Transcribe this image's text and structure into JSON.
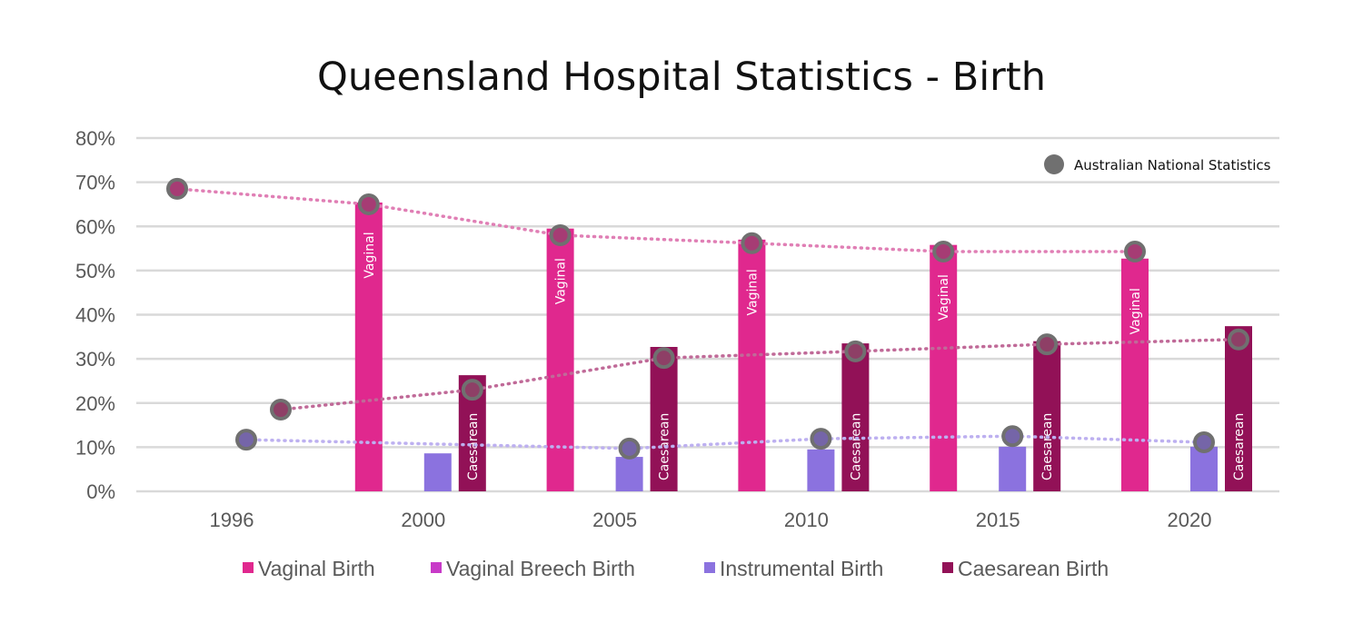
{
  "chart_data": {
    "type": "bar",
    "title": "Queensland Hospital Statistics - Birth",
    "xlabel": "",
    "ylabel": "",
    "ylim": [
      0,
      80
    ],
    "y_ticks": [
      "0%",
      "10%",
      "20%",
      "30%",
      "40%",
      "50%",
      "60%",
      "70%",
      "80%"
    ],
    "y_tick_values": [
      0,
      10,
      20,
      30,
      40,
      50,
      60,
      70,
      80
    ],
    "grid": true,
    "categories": [
      "1996",
      "2000",
      "2005",
      "2010",
      "2015",
      "2020"
    ],
    "series": [
      {
        "name": "Vaginal Birth",
        "color": "#E0288E",
        "bar_label": "Vaginal",
        "values": [
          null,
          65.4,
          59.5,
          57.0,
          55.8,
          52.7
        ]
      },
      {
        "name": "Vaginal Breech Birth",
        "color": "#C83AC8",
        "bar_label": "",
        "values": [
          null,
          null,
          null,
          null,
          null,
          null
        ]
      },
      {
        "name": "Instrumental Birth",
        "color": "#8B72DF",
        "bar_label": "",
        "values": [
          null,
          8.6,
          7.8,
          9.5,
          10.1,
          10.1
        ]
      },
      {
        "name": "Caesarean Birth",
        "color": "#921157",
        "bar_label": "Caesarean",
        "values": [
          null,
          26.3,
          32.7,
          33.5,
          34.0,
          37.4
        ]
      }
    ],
    "national": {
      "name": "Australian National Statistics",
      "marker_color": "#707070",
      "legend_position": "top-right",
      "lines": [
        {
          "series": "Vaginal Birth",
          "line_color": "#E07FB5",
          "fill": "#A63C74",
          "values": [
            68.5,
            65.0,
            58.0,
            56.2,
            54.3,
            54.3
          ]
        },
        {
          "series": "Instrumental Birth",
          "line_color": "#BDB0F0",
          "fill": "#7565A8",
          "values": [
            11.7,
            null,
            9.7,
            11.9,
            12.5,
            11.1
          ]
        },
        {
          "series": "Caesarean Birth",
          "line_color": "#C06A98",
          "fill": "#8E3F66",
          "values": [
            18.5,
            23.0,
            30.2,
            31.7,
            33.3,
            34.4
          ]
        }
      ]
    },
    "legend_position": "bottom"
  }
}
